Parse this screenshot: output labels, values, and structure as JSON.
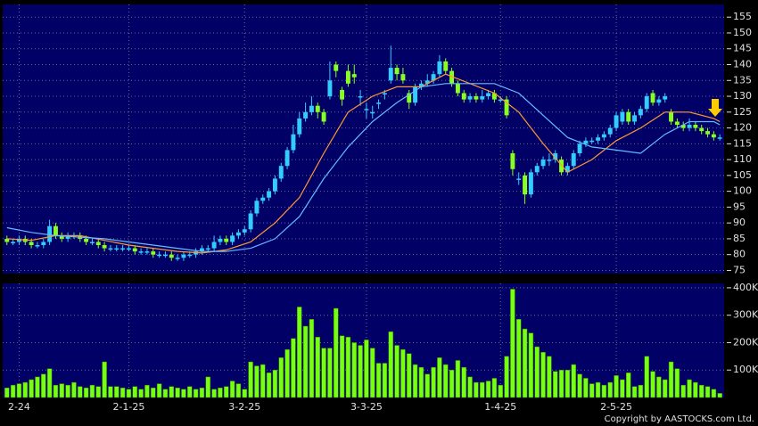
{
  "chart_data": [
    {
      "type": "candlestick",
      "xlim": [
        -0.7,
        117.7
      ],
      "ylim": [
        74,
        159
      ],
      "yticks": [
        75,
        80,
        85,
        90,
        95,
        100,
        105,
        110,
        115,
        120,
        125,
        130,
        135,
        140,
        145,
        150,
        155
      ],
      "grid": true,
      "up_color": "#33ccff",
      "down_color": "#88ff22",
      "open": [
        85,
        84,
        84,
        85,
        84,
        83,
        83,
        84,
        89,
        86,
        85,
        86,
        86,
        85,
        84,
        84,
        83,
        82,
        82,
        82,
        82,
        82,
        81,
        81,
        81,
        80,
        80,
        80,
        79,
        79,
        80,
        80,
        81,
        82,
        82,
        84,
        85,
        84,
        86,
        87,
        88,
        93,
        97,
        98,
        100,
        104,
        108,
        113,
        118,
        123,
        125,
        127,
        125,
        130,
        140,
        132,
        138,
        137,
        130,
        126,
        125,
        128,
        131,
        135,
        139,
        137,
        131,
        128,
        133,
        134,
        135,
        137,
        141,
        138,
        134,
        131,
        129,
        130,
        129,
        130,
        131,
        129,
        129,
        112,
        104,
        105,
        99,
        106,
        108,
        110,
        110,
        110,
        106,
        108,
        112,
        115,
        116,
        116,
        117,
        118,
        120,
        122,
        125,
        122,
        124,
        126,
        131,
        128,
        129,
        125,
        122,
        121,
        120,
        121,
        120,
        119,
        118,
        117
      ],
      "high": [
        86,
        85,
        86,
        86,
        85,
        84,
        85,
        91,
        90,
        87,
        87,
        87,
        87,
        86,
        85,
        85,
        84,
        83,
        83,
        83,
        83,
        83,
        82,
        82,
        82,
        81,
        81,
        81,
        80,
        81,
        81,
        82,
        83,
        83,
        86,
        86,
        86,
        87,
        88,
        89,
        94,
        98,
        99,
        101,
        105,
        109,
        114,
        121,
        125,
        128,
        130,
        128,
        126,
        141,
        141,
        133,
        140,
        140,
        132,
        128,
        127,
        129,
        132,
        146,
        140,
        139,
        132,
        134,
        135,
        137,
        138,
        143,
        142,
        139,
        135,
        132,
        131,
        131,
        132,
        132,
        132,
        130,
        130,
        113,
        106,
        106,
        107,
        109,
        111,
        112,
        113,
        111,
        109,
        113,
        116,
        117,
        117,
        118,
        119,
        121,
        125,
        126,
        126,
        125,
        127,
        131,
        132,
        130,
        131,
        126,
        123,
        122,
        123,
        122,
        121,
        120,
        119,
        118
      ],
      "low": [
        83,
        83,
        83,
        83,
        82,
        82,
        82,
        83,
        85,
        84,
        84,
        85,
        84,
        83,
        83,
        82,
        81,
        81,
        81,
        81,
        81,
        80,
        80,
        80,
        79,
        79,
        79,
        78,
        78,
        78,
        79,
        79,
        80,
        81,
        81,
        83,
        83,
        83,
        85,
        86,
        87,
        92,
        96,
        97,
        99,
        103,
        107,
        112,
        117,
        122,
        124,
        123,
        121,
        129,
        136,
        127,
        133,
        134,
        127,
        123,
        123,
        126,
        129,
        134,
        135,
        134,
        126,
        127,
        132,
        133,
        134,
        136,
        137,
        133,
        130,
        128,
        128,
        128,
        128,
        129,
        128,
        128,
        123,
        105,
        102,
        96,
        98,
        105,
        107,
        108,
        109,
        105,
        105,
        107,
        111,
        114,
        115,
        115,
        116,
        117,
        119,
        121,
        121,
        121,
        123,
        125,
        127,
        127,
        128,
        121,
        120,
        119,
        119,
        119,
        118,
        117,
        116,
        116
      ],
      "close": [
        84,
        84,
        85,
        84,
        83,
        83,
        84,
        89,
        86,
        85,
        86,
        86,
        85,
        84,
        84,
        83,
        82,
        82,
        82,
        82,
        82,
        81,
        81,
        81,
        80,
        80,
        80,
        79,
        79,
        80,
        80,
        81,
        82,
        82,
        84,
        85,
        84,
        86,
        87,
        88,
        93,
        97,
        98,
        100,
        104,
        108,
        113,
        118,
        123,
        125,
        127,
        125,
        122,
        135,
        138,
        129,
        134,
        136,
        130,
        126,
        125,
        128,
        131,
        139,
        137,
        135,
        128,
        133,
        134,
        135,
        137,
        141,
        138,
        134,
        131,
        129,
        130,
        129,
        130,
        131,
        129,
        129,
        124,
        107,
        104,
        99,
        106,
        108,
        110,
        110,
        112,
        106,
        108,
        112,
        115,
        116,
        116,
        117,
        118,
        120,
        124,
        125,
        122,
        124,
        126,
        130,
        128,
        129,
        130,
        122,
        121,
        120,
        121,
        120,
        119,
        118,
        117,
        117
      ],
      "lines": [
        {
          "color": "#ff9933",
          "x": [
            0,
            4,
            8,
            12,
            16,
            20,
            24,
            28,
            32,
            36,
            40,
            44,
            48,
            52,
            56,
            60,
            64,
            68,
            72,
            76,
            80,
            84,
            88,
            92,
            96,
            100,
            104,
            108,
            112,
            116,
            117
          ],
          "values": [
            85,
            84.5,
            86,
            86,
            84.5,
            83,
            82,
            81,
            80.5,
            81.5,
            84,
            90,
            98,
            112,
            125,
            130,
            133,
            133,
            137,
            134,
            131,
            125,
            115,
            106,
            110,
            116,
            120,
            125,
            125,
            123,
            122
          ]
        },
        {
          "color": "#66bbff",
          "x": [
            0,
            4,
            8,
            12,
            16,
            20,
            24,
            28,
            32,
            36,
            40,
            44,
            48,
            52,
            56,
            60,
            64,
            68,
            72,
            76,
            80,
            84,
            88,
            92,
            96,
            100,
            104,
            108,
            112,
            116,
            117
          ],
          "values": [
            88.5,
            87,
            86,
            85.5,
            85,
            84,
            83,
            82,
            81,
            81,
            82,
            85,
            92,
            104,
            114,
            122,
            128,
            133,
            134,
            134,
            134,
            131,
            124,
            117,
            114,
            113,
            112,
            118,
            122,
            122,
            121
          ]
        }
      ]
    },
    {
      "type": "bar",
      "color": "#77ff11",
      "xlim": [
        -0.7,
        117.7
      ],
      "ylim": [
        0,
        416000
      ],
      "yticks": [
        {
          "value": 100000,
          "label": "100K"
        },
        {
          "value": 200000,
          "label": "200K"
        },
        {
          "value": 300000,
          "label": "300K"
        },
        {
          "value": 400000,
          "label": "400K"
        }
      ],
      "xticks": [
        {
          "value": 2,
          "label": "2-24"
        },
        {
          "value": 20,
          "label": "2-1-25"
        },
        {
          "value": 39,
          "label": "3-2-25"
        },
        {
          "value": 59,
          "label": "3-3-25"
        },
        {
          "value": 81,
          "label": "1-4-25"
        },
        {
          "value": 100,
          "label": "2-5-25"
        }
      ],
      "grid": true,
      "values": [
        35000,
        45000,
        50000,
        55000,
        65000,
        75000,
        85000,
        105000,
        45000,
        50000,
        45000,
        55000,
        40000,
        35000,
        45000,
        40000,
        130000,
        40000,
        40000,
        35000,
        30000,
        40000,
        30000,
        45000,
        35000,
        50000,
        30000,
        40000,
        35000,
        30000,
        40000,
        30000,
        35000,
        75000,
        30000,
        35000,
        40000,
        60000,
        50000,
        30000,
        130000,
        115000,
        120000,
        90000,
        100000,
        145000,
        175000,
        215000,
        330000,
        260000,
        285000,
        220000,
        180000,
        180000,
        325000,
        225000,
        220000,
        200000,
        190000,
        210000,
        180000,
        125000,
        125000,
        240000,
        190000,
        175000,
        160000,
        120000,
        110000,
        85000,
        110000,
        145000,
        120000,
        100000,
        135000,
        110000,
        75000,
        55000,
        55000,
        60000,
        70000,
        45000,
        150000,
        395000,
        285000,
        250000,
        235000,
        185000,
        165000,
        150000,
        95000,
        100000,
        100000,
        120000,
        85000,
        70000,
        50000,
        55000,
        45000,
        55000,
        80000,
        65000,
        90000,
        40000,
        45000,
        150000,
        95000,
        75000,
        65000,
        130000,
        105000,
        45000,
        65000,
        55000,
        45000,
        40000,
        30000,
        15000
      ]
    }
  ],
  "copyright": "Copyright by AASTOCKS.com Ltd."
}
